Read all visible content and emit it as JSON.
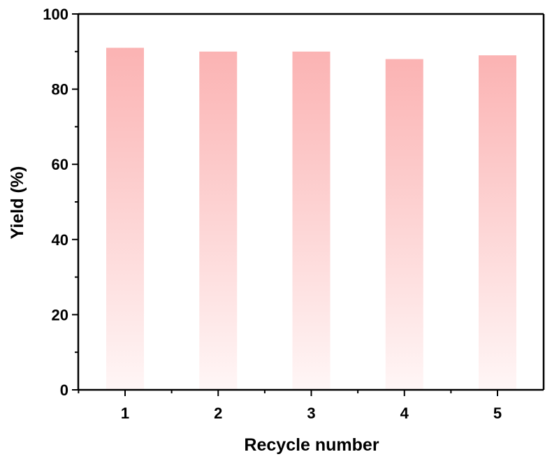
{
  "chart_data": {
    "type": "bar",
    "categories": [
      "1",
      "2",
      "3",
      "4",
      "5"
    ],
    "values": [
      91,
      90,
      90,
      88,
      89
    ],
    "xlabel": "Recycle number",
    "ylabel": "Yield (%)",
    "ylim": [
      0,
      100
    ],
    "yticks": [
      "0",
      "20",
      "40",
      "60",
      "80",
      "100"
    ],
    "grid": false,
    "legend": "none",
    "bar_color_top": "#fbb3b3",
    "bar_color_bottom": "#fff6f6",
    "axis_color": "#000000"
  }
}
